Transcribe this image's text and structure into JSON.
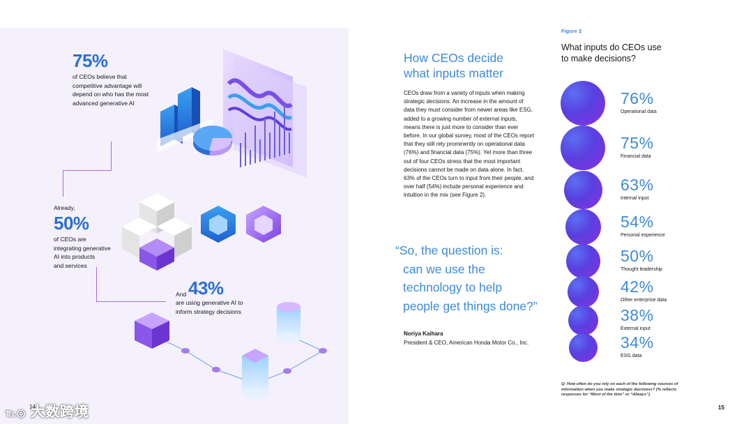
{
  "left_page": {
    "stat1": {
      "value": "75%",
      "text": [
        "of CEOs believe that",
        "competitive advantage will",
        "depend on who has the most",
        "advanced generative AI"
      ]
    },
    "stat2": {
      "intro": "Already,",
      "value": "50%",
      "text": [
        "of CEOs are",
        "integrating generative",
        "AI into products",
        "and services"
      ]
    },
    "stat3": {
      "intro": "And",
      "value": "43%",
      "text": [
        "are using generative AI to",
        "inform strategy decisions"
      ]
    },
    "page_number": "14"
  },
  "right_page": {
    "section_title": [
      "How CEOs decide",
      "what inputs matter"
    ],
    "body_lines": [
      "CEOs draw from a variety of inputs when making",
      "strategic decisions. An increase in the amount of",
      "data they must consider from newer areas like ESG,",
      "added to a growing number of external inputs,",
      "means there is just more to consider than ever",
      "before. In our global survey, most of  the CEOs report",
      "that they still rely prominently on operational data",
      "(76%) and financial data (75%). Yet more than three",
      "out of four CEOs stress that the most important",
      "decisions cannot be made on data alone. In fact,",
      "63% of the CEOs turn to input from their people, and",
      "over half (54%) include personal experience and",
      "intuition in the mix (see Figure 2)."
    ],
    "quote_lines": [
      "“So, the question is:",
      "can we use the",
      "technology to help",
      "people get things done?”"
    ],
    "author_name": "Noriya Kaihara",
    "author_role": "President & CEO, American Honda Motor Co., Inc.",
    "figure_label": "Figure 2",
    "figure_title": [
      "What inputs do CEOs use",
      "to make decisions?"
    ],
    "figure_note": "Q: How often do you rely on each of the following sources of information when you make strategic decisions? (% reflects responses for “Most of the time” or “Always”).",
    "page_number": "15"
  },
  "chart_data": {
    "type": "bubble",
    "categories": [
      "Operational data",
      "Financial data",
      "Internal input",
      "Personal experience",
      "Thought leadership",
      "Other enterprise data",
      "External input",
      "ESG data"
    ],
    "values": [
      76,
      75,
      63,
      54,
      50,
      42,
      38,
      34
    ],
    "labels": [
      "76%",
      "75%",
      "63%",
      "54%",
      "50%",
      "42%",
      "38%",
      "34%"
    ]
  },
  "watermark": {
    "logo": "℡◎",
    "text": "大数跨境"
  },
  "colors": {
    "accent_blue": "#3d8ad8",
    "stat_blue": "#2b6fd6",
    "bubble_purple": "#5a3fe0",
    "panel_bg": "#f4f1fc"
  }
}
